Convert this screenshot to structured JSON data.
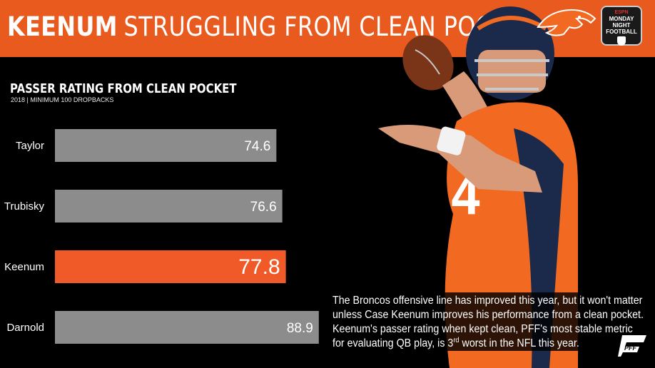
{
  "header": {
    "title_strong": "KEENUM",
    "title_rest": "STRUGGLING FROM CLEAN POCKET",
    "accent_color": "#e85a1e"
  },
  "logos": {
    "broncos_icon": "broncos-horse-logo-icon",
    "mnf_lines": [
      "ESPN",
      "MONDAY",
      "NIGHT",
      "FOOTBALL"
    ],
    "pff_text": "PFF"
  },
  "chart_data": {
    "type": "bar",
    "orientation": "horizontal",
    "title": "PASSER RATING FROM CLEAN POCKET",
    "subtitle": "2018 | MINIMUM 100 DROPBACKS",
    "categories": [
      "Taylor",
      "Trubisky",
      "Keenum",
      "Darnold"
    ],
    "values": [
      74.6,
      76.6,
      77.8,
      88.9
    ],
    "highlight": "Keenum",
    "xlim": [
      0,
      100
    ],
    "colors": {
      "default": "#8c8c8c",
      "highlight": "#f05a28"
    },
    "grid": false,
    "legend": "none"
  },
  "blurb": {
    "line1": "The Broncos offensive line has improved this year, but it won't matter",
    "line2": "unless Case Keenum improves his performance from a clean pocket.",
    "line3": "Keenum's passer rating when kept clean, PFF's most stable metric",
    "line4_a": "for evaluating QB play, is 3",
    "line4_sup": "rd",
    "line4_b": " worst in the NFL this year."
  }
}
